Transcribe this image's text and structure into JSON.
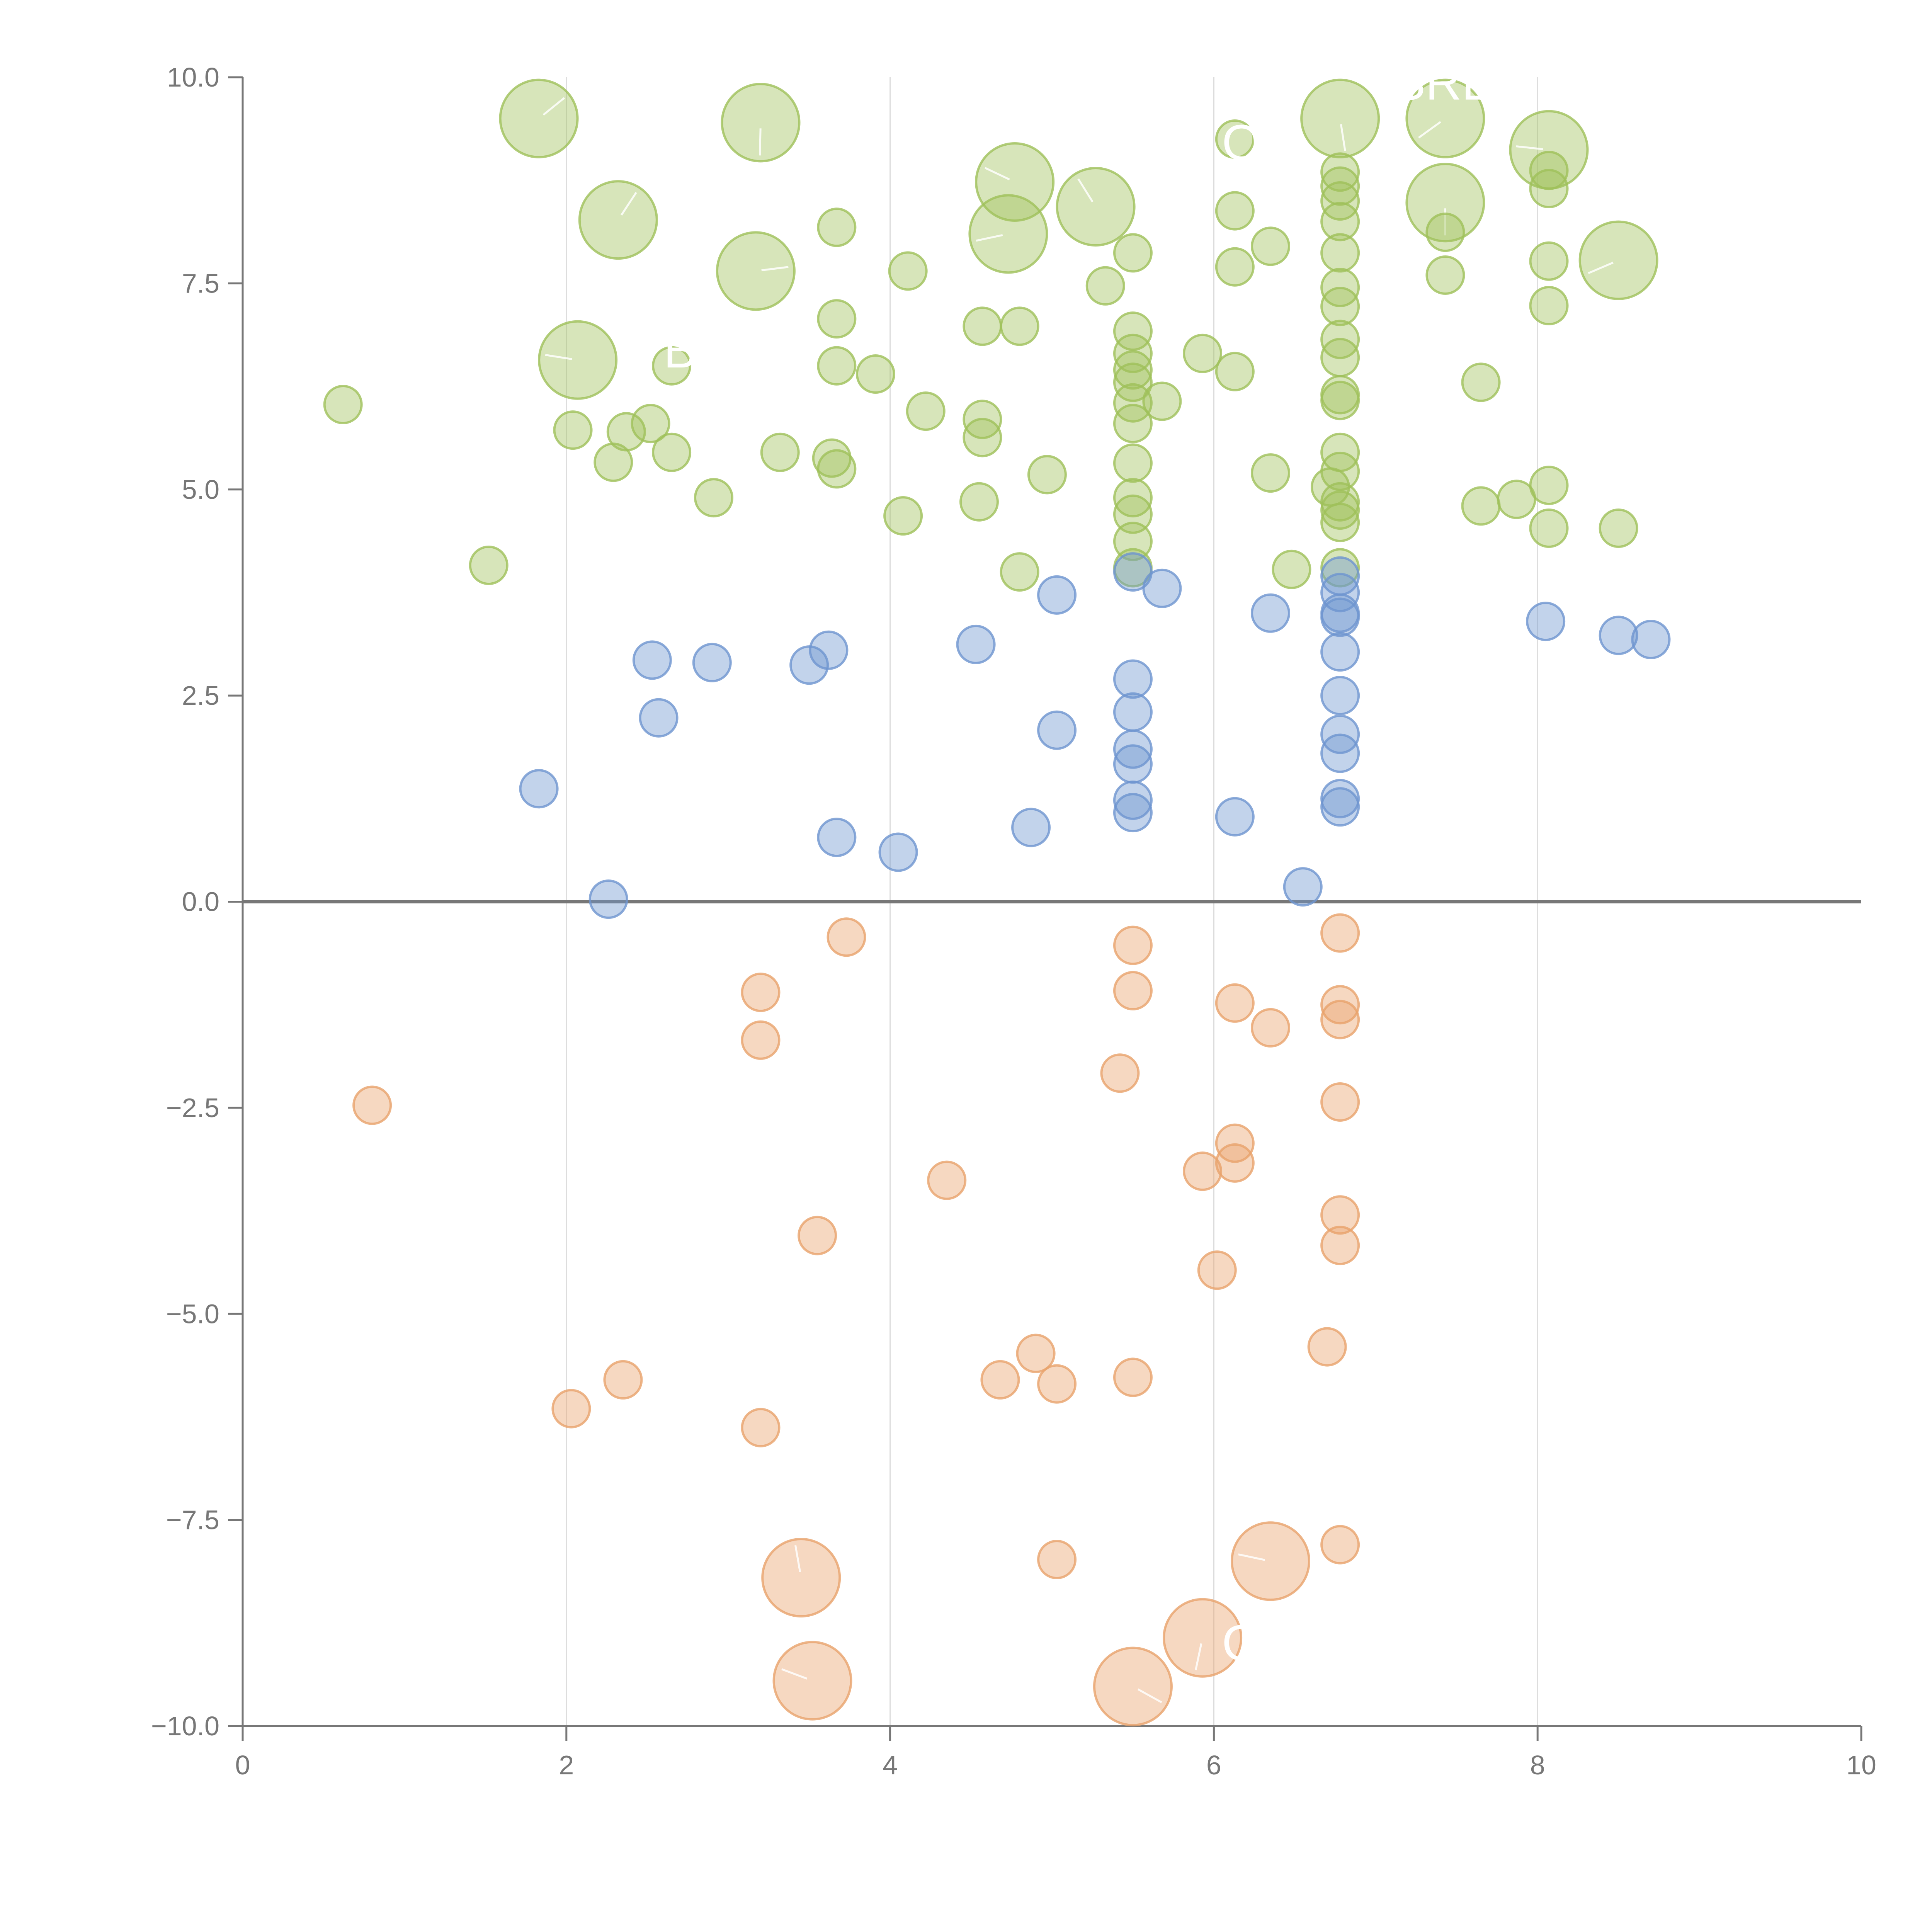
{
  "chart_data": {
    "type": "scatter",
    "title": "",
    "xlabel": "",
    "ylabel": "",
    "xlim": [
      0,
      10
    ],
    "ylim": [
      -10,
      10
    ],
    "x_ticks": [
      0,
      2,
      4,
      6,
      8,
      10
    ],
    "x_tick_labels": [
      "0",
      "2",
      "4",
      "6",
      "8",
      "10"
    ],
    "y_ticks": [
      10,
      7.5,
      5,
      2.5,
      0,
      -2.5,
      -5,
      -7.5,
      -10
    ],
    "y_tick_labels": [
      "10.0",
      "7.5",
      "5.0",
      "2.5",
      "0.0",
      "−2.5",
      "−5.0",
      "−7.5",
      "−10.0"
    ],
    "grid": "vertical",
    "zero_line": true,
    "series": [
      {
        "name": "green",
        "color": "#9fc05a",
        "points": [
          {
            "x": 1.83,
            "y": 9.5,
            "s": "large"
          },
          {
            "x": 3.2,
            "y": 9.45,
            "s": "large"
          },
          {
            "x": 2.32,
            "y": 8.27,
            "s": "large"
          },
          {
            "x": 3.17,
            "y": 7.65,
            "s": "large"
          },
          {
            "x": 2.07,
            "y": 6.57,
            "s": "large"
          },
          {
            "x": 4.77,
            "y": 8.73,
            "s": "large"
          },
          {
            "x": 4.73,
            "y": 8.1,
            "s": "large"
          },
          {
            "x": 5.27,
            "y": 8.43,
            "s": "large"
          },
          {
            "x": 6.78,
            "y": 9.5,
            "s": "large"
          },
          {
            "x": 7.43,
            "y": 9.5,
            "s": "large"
          },
          {
            "x": 7.43,
            "y": 8.48,
            "s": "large"
          },
          {
            "x": 8.07,
            "y": 9.12,
            "s": "large"
          },
          {
            "x": 8.5,
            "y": 7.78,
            "s": "large"
          },
          {
            "x": 0.62,
            "y": 6.03
          },
          {
            "x": 1.52,
            "y": 4.08
          },
          {
            "x": 2.04,
            "y": 5.72
          },
          {
            "x": 2.29,
            "y": 5.33
          },
          {
            "x": 2.37,
            "y": 5.7
          },
          {
            "x": 2.52,
            "y": 5.8
          },
          {
            "x": 2.65,
            "y": 5.45
          },
          {
            "x": 2.65,
            "y": 6.5
          },
          {
            "x": 2.91,
            "y": 4.9
          },
          {
            "x": 3.32,
            "y": 5.45
          },
          {
            "x": 3.64,
            "y": 5.38
          },
          {
            "x": 3.67,
            "y": 5.25
          },
          {
            "x": 3.67,
            "y": 6.5
          },
          {
            "x": 3.67,
            "y": 7.07
          },
          {
            "x": 3.67,
            "y": 8.18
          },
          {
            "x": 3.91,
            "y": 6.4
          },
          {
            "x": 4.08,
            "y": 4.68
          },
          {
            "x": 4.11,
            "y": 7.65
          },
          {
            "x": 4.22,
            "y": 5.95
          },
          {
            "x": 4.55,
            "y": 4.85
          },
          {
            "x": 4.57,
            "y": 5.63
          },
          {
            "x": 4.57,
            "y": 5.85
          },
          {
            "x": 4.57,
            "y": 6.98
          },
          {
            "x": 4.8,
            "y": 4.0
          },
          {
            "x": 4.8,
            "y": 6.98
          },
          {
            "x": 4.97,
            "y": 5.18
          },
          {
            "x": 5.33,
            "y": 7.47
          },
          {
            "x": 5.5,
            "y": 4.37
          },
          {
            "x": 5.5,
            "y": 4.7
          },
          {
            "x": 5.5,
            "y": 4.9
          },
          {
            "x": 5.5,
            "y": 5.32
          },
          {
            "x": 5.5,
            "y": 5.8
          },
          {
            "x": 5.5,
            "y": 6.05
          },
          {
            "x": 5.5,
            "y": 6.3
          },
          {
            "x": 5.5,
            "y": 6.45
          },
          {
            "x": 5.5,
            "y": 6.65
          },
          {
            "x": 5.5,
            "y": 6.92
          },
          {
            "x": 5.5,
            "y": 7.87
          },
          {
            "x": 5.5,
            "y": 4.05
          },
          {
            "x": 5.68,
            "y": 6.07
          },
          {
            "x": 5.93,
            "y": 6.65
          },
          {
            "x": 6.13,
            "y": 6.43
          },
          {
            "x": 6.13,
            "y": 7.7
          },
          {
            "x": 6.13,
            "y": 8.38
          },
          {
            "x": 6.13,
            "y": 9.25
          },
          {
            "x": 6.35,
            "y": 5.2
          },
          {
            "x": 6.35,
            "y": 7.95
          },
          {
            "x": 6.48,
            "y": 4.03
          },
          {
            "x": 6.72,
            "y": 5.03
          },
          {
            "x": 6.78,
            "y": 4.05
          },
          {
            "x": 6.78,
            "y": 4.6
          },
          {
            "x": 6.78,
            "y": 4.75
          },
          {
            "x": 6.78,
            "y": 4.85
          },
          {
            "x": 6.78,
            "y": 5.22
          },
          {
            "x": 6.78,
            "y": 5.45
          },
          {
            "x": 6.78,
            "y": 6.08
          },
          {
            "x": 6.78,
            "y": 6.15
          },
          {
            "x": 6.78,
            "y": 6.6
          },
          {
            "x": 6.78,
            "y": 6.82
          },
          {
            "x": 6.78,
            "y": 7.22
          },
          {
            "x": 6.78,
            "y": 7.45
          },
          {
            "x": 6.78,
            "y": 7.87
          },
          {
            "x": 6.78,
            "y": 8.25
          },
          {
            "x": 6.78,
            "y": 8.5
          },
          {
            "x": 6.78,
            "y": 8.68
          },
          {
            "x": 6.78,
            "y": 8.85
          },
          {
            "x": 7.43,
            "y": 7.6
          },
          {
            "x": 7.43,
            "y": 8.12
          },
          {
            "x": 7.65,
            "y": 4.8
          },
          {
            "x": 7.65,
            "y": 6.3
          },
          {
            "x": 7.87,
            "y": 4.88
          },
          {
            "x": 8.07,
            "y": 4.53
          },
          {
            "x": 8.07,
            "y": 5.05
          },
          {
            "x": 8.07,
            "y": 7.23
          },
          {
            "x": 8.07,
            "y": 7.77
          },
          {
            "x": 8.07,
            "y": 8.65
          },
          {
            "x": 8.07,
            "y": 8.87
          },
          {
            "x": 8.5,
            "y": 4.53
          }
        ]
      },
      {
        "name": "blue",
        "color": "#6e95cf",
        "points": [
          {
            "x": 1.83,
            "y": 1.37
          },
          {
            "x": 2.26,
            "y": 0.03
          },
          {
            "x": 2.53,
            "y": 2.93
          },
          {
            "x": 2.57,
            "y": 2.23
          },
          {
            "x": 2.9,
            "y": 2.9
          },
          {
            "x": 3.5,
            "y": 2.87
          },
          {
            "x": 3.62,
            "y": 3.05
          },
          {
            "x": 3.67,
            "y": 0.78
          },
          {
            "x": 4.05,
            "y": 0.6
          },
          {
            "x": 4.53,
            "y": 3.12
          },
          {
            "x": 4.87,
            "y": 0.9
          },
          {
            "x": 5.03,
            "y": 2.08
          },
          {
            "x": 5.03,
            "y": 3.72
          },
          {
            "x": 5.5,
            "y": 1.08
          },
          {
            "x": 5.5,
            "y": 1.23
          },
          {
            "x": 5.5,
            "y": 1.67
          },
          {
            "x": 5.5,
            "y": 1.85
          },
          {
            "x": 5.5,
            "y": 2.3
          },
          {
            "x": 5.5,
            "y": 2.7
          },
          {
            "x": 5.5,
            "y": 4.0
          },
          {
            "x": 5.68,
            "y": 3.8
          },
          {
            "x": 6.13,
            "y": 1.03
          },
          {
            "x": 6.35,
            "y": 3.5
          },
          {
            "x": 6.55,
            "y": 0.18
          },
          {
            "x": 6.78,
            "y": 1.15
          },
          {
            "x": 6.78,
            "y": 1.25
          },
          {
            "x": 6.78,
            "y": 1.8
          },
          {
            "x": 6.78,
            "y": 2.03
          },
          {
            "x": 6.78,
            "y": 2.5
          },
          {
            "x": 6.78,
            "y": 3.03
          },
          {
            "x": 6.78,
            "y": 3.45
          },
          {
            "x": 6.78,
            "y": 3.5
          },
          {
            "x": 6.78,
            "y": 3.75
          },
          {
            "x": 6.78,
            "y": 3.95
          },
          {
            "x": 8.05,
            "y": 3.4
          },
          {
            "x": 8.5,
            "y": 3.23
          },
          {
            "x": 8.7,
            "y": 3.18
          }
        ]
      },
      {
        "name": "orange",
        "color": "#e9a26b",
        "points": [
          {
            "x": 3.45,
            "y": -8.2,
            "s": "large"
          },
          {
            "x": 3.52,
            "y": -9.45,
            "s": "large"
          },
          {
            "x": 5.5,
            "y": -9.52,
            "s": "large"
          },
          {
            "x": 5.93,
            "y": -8.93,
            "s": "large"
          },
          {
            "x": 6.35,
            "y": -8.0,
            "s": "large"
          },
          {
            "x": 0.8,
            "y": -2.47
          },
          {
            "x": 2.03,
            "y": -6.15
          },
          {
            "x": 2.35,
            "y": -5.8
          },
          {
            "x": 3.2,
            "y": -1.1
          },
          {
            "x": 3.2,
            "y": -1.68
          },
          {
            "x": 3.2,
            "y": -6.38
          },
          {
            "x": 3.55,
            "y": -4.05
          },
          {
            "x": 3.73,
            "y": -0.43
          },
          {
            "x": 4.35,
            "y": -3.38
          },
          {
            "x": 4.68,
            "y": -5.8
          },
          {
            "x": 4.9,
            "y": -5.48
          },
          {
            "x": 5.03,
            "y": -5.85
          },
          {
            "x": 5.03,
            "y": -7.98
          },
          {
            "x": 5.42,
            "y": -2.08
          },
          {
            "x": 5.5,
            "y": -0.53
          },
          {
            "x": 5.5,
            "y": -1.08
          },
          {
            "x": 5.5,
            "y": -5.77
          },
          {
            "x": 5.93,
            "y": -3.27
          },
          {
            "x": 6.02,
            "y": -4.47
          },
          {
            "x": 6.13,
            "y": -1.23
          },
          {
            "x": 6.13,
            "y": -2.93
          },
          {
            "x": 6.13,
            "y": -3.17
          },
          {
            "x": 6.35,
            "y": -1.53
          },
          {
            "x": 6.7,
            "y": -5.4
          },
          {
            "x": 6.78,
            "y": -0.38
          },
          {
            "x": 6.78,
            "y": -1.25
          },
          {
            "x": 6.78,
            "y": -1.43
          },
          {
            "x": 6.78,
            "y": -2.43
          },
          {
            "x": 6.78,
            "y": -3.8
          },
          {
            "x": 6.78,
            "y": -4.17
          },
          {
            "x": 6.78,
            "y": -7.8
          }
        ]
      }
    ],
    "annotations": [
      {
        "text": "SRL",
        "x": 7.1,
        "y": 9.73
      },
      {
        "text": "B",
        "x": 2.6,
        "y": 6.48
      },
      {
        "text": "O",
        "x": 6.05,
        "y": 9.0
      },
      {
        "text": "O",
        "x": 6.05,
        "y": -9.2
      }
    ]
  }
}
